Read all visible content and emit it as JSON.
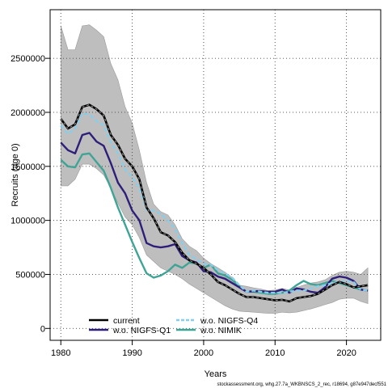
{
  "chart_data": {
    "type": "line",
    "xlabel": "Years",
    "ylabel": "Recruits (age 0)",
    "xlim": [
      1978.5,
      2024.8
    ],
    "ylim": [
      -110000,
      2950000
    ],
    "x_ticks": [
      1980,
      1990,
      2000,
      2010,
      2020
    ],
    "x_tick_labels": [
      "1980",
      "1990",
      "2000",
      "2010",
      "2020"
    ],
    "y_ticks": [
      0,
      500000,
      1000000,
      1500000,
      2000000,
      2500000
    ],
    "y_tick_labels": [
      "0",
      "500000",
      "1000000",
      "1500000",
      "2000000",
      "2500000"
    ],
    "grid": true,
    "legend_position": "bottom-left",
    "footer": "stockassessment.org, whg.27.7a_WKBNSCS_2_rec, r18694, g87e947decf551",
    "years": [
      1980,
      1981,
      1982,
      1983,
      1984,
      1985,
      1986,
      1987,
      1988,
      1989,
      1990,
      1991,
      1992,
      1993,
      1994,
      1995,
      1996,
      1997,
      1998,
      1999,
      2000,
      2001,
      2002,
      2003,
      2004,
      2005,
      2006,
      2007,
      2008,
      2009,
      2010,
      2011,
      2012,
      2013,
      2014,
      2015,
      2016,
      2017,
      2018,
      2019,
      2020,
      2021,
      2022,
      2023
    ],
    "band": {
      "upper": [
        2800000,
        2580000,
        2580000,
        2800000,
        2810000,
        2760000,
        2700000,
        2450000,
        2300000,
        2050000,
        1900000,
        1650000,
        1350000,
        1150000,
        1080000,
        1050000,
        960000,
        830000,
        760000,
        720000,
        650000,
        600000,
        560000,
        520000,
        470000,
        400000,
        390000,
        375000,
        365000,
        350000,
        355000,
        370000,
        355000,
        380000,
        400000,
        420000,
        430000,
        450000,
        490000,
        520000,
        530000,
        520000,
        500000,
        560000
      ],
      "lower": [
        1320000,
        1320000,
        1380000,
        1520000,
        1520000,
        1480000,
        1420000,
        1300000,
        1160000,
        1030000,
        960000,
        840000,
        680000,
        620000,
        560000,
        530000,
        500000,
        460000,
        410000,
        370000,
        330000,
        290000,
        250000,
        210000,
        180000,
        160000,
        155000,
        150000,
        145000,
        140000,
        140000,
        150000,
        145000,
        150000,
        165000,
        180000,
        200000,
        220000,
        240000,
        270000,
        280000,
        280000,
        250000,
        230000
      ]
    },
    "series": [
      {
        "name": "current",
        "color": "#000000",
        "dash": "none",
        "width": 2.6,
        "values": [
          1940000,
          1850000,
          1890000,
          2050000,
          2070000,
          2030000,
          1970000,
          1790000,
          1700000,
          1570000,
          1500000,
          1380000,
          1120000,
          1020000,
          890000,
          860000,
          800000,
          700000,
          630000,
          600000,
          560000,
          500000,
          430000,
          400000,
          360000,
          320000,
          290000,
          290000,
          280000,
          270000,
          260000,
          265000,
          250000,
          280000,
          290000,
          300000,
          320000,
          360000,
          400000,
          430000,
          410000,
          380000,
          390000,
          400000
        ]
      },
      {
        "name": "w.o. NIGFS-Q4",
        "color": "#87CEEB",
        "dash": "5,3",
        "width": 2.4,
        "values": [
          1880000,
          1800000,
          1850000,
          1990000,
          1980000,
          1920000,
          1880000,
          1720000,
          1620000,
          1470000,
          1400000,
          1300000,
          1100000,
          1090000,
          1060000,
          1000000,
          920000,
          790000,
          680000,
          640000,
          600000,
          590000,
          540000,
          510000,
          470000,
          400000,
          340000,
          350000,
          340000,
          330000,
          330000,
          330000,
          340000,
          350000,
          350000,
          370000,
          390000,
          400000,
          420000,
          430000,
          440000,
          430000,
          360000,
          350000
        ]
      },
      {
        "name": "w.o. NIGFS-Q1",
        "color": "#2E1E7A",
        "dash": "none",
        "width": 2.4,
        "values": [
          1720000,
          1650000,
          1620000,
          1790000,
          1810000,
          1730000,
          1690000,
          1530000,
          1350000,
          1250000,
          1090000,
          1000000,
          790000,
          760000,
          750000,
          760000,
          780000,
          670000,
          630000,
          610000,
          530000,
          520000,
          480000,
          460000,
          420000,
          380000,
          340000,
          345000,
          345000,
          340000,
          340000,
          360000,
          330000,
          370000,
          360000,
          340000,
          330000,
          380000,
          460000,
          480000,
          470000,
          440000,
          360000,
          350000
        ]
      },
      {
        "name": "w.o. NIMIK",
        "color": "#3FA496",
        "dash": "none",
        "width": 2.4,
        "values": [
          1560000,
          1500000,
          1490000,
          1610000,
          1620000,
          1540000,
          1460000,
          1300000,
          1120000,
          960000,
          800000,
          650000,
          510000,
          470000,
          490000,
          530000,
          590000,
          560000,
          610000,
          600000,
          560000,
          590000,
          510000,
          490000,
          450000,
          390000,
          340000,
          340000,
          330000,
          320000,
          320000,
          330000,
          350000,
          400000,
          440000,
          410000,
          400000,
          420000,
          440000,
          420000,
          400000,
          380000,
          360000,
          350000
        ]
      }
    ]
  }
}
